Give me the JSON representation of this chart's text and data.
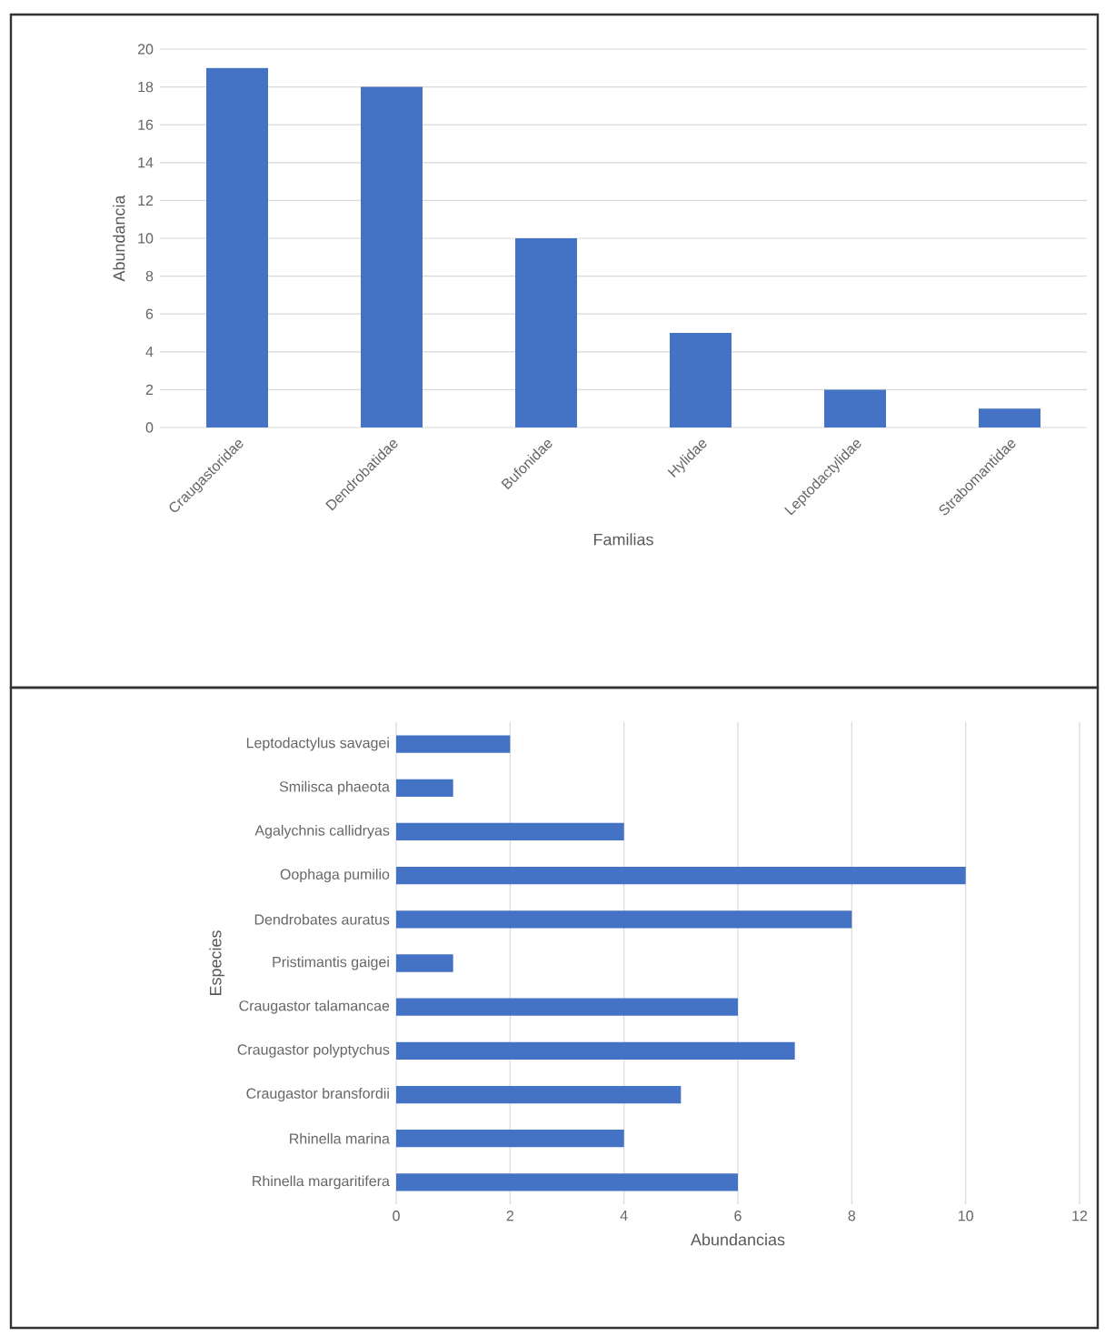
{
  "chart_data": [
    {
      "type": "bar",
      "xlabel": "Familias",
      "ylabel": "Abundancia",
      "categories": [
        "Craugastoridae",
        "Dendrobatidae",
        "Bufonidae",
        "Hylidae",
        "Leptodactylidae",
        "Strabomantidae"
      ],
      "values": [
        19,
        18,
        10,
        5,
        2,
        1
      ],
      "color": "#4472c4",
      "ylim": [
        0,
        20
      ],
      "yticks": [
        0,
        2,
        4,
        6,
        8,
        10,
        12,
        14,
        16,
        18,
        20
      ],
      "grid": "y"
    },
    {
      "type": "bar",
      "orientation": "horizontal",
      "xlabel": "Abundancias",
      "ylabel": "Especies",
      "categories": [
        "Leptodactylus savagei",
        "Smilisca phaeota",
        "Agalychnis callidryas",
        "Oophaga pumilio",
        "Dendrobates auratus",
        "Pristimantis gaigei",
        "Craugastor talamancae",
        "Craugastor polyptychus",
        "Craugastor bransfordii",
        "Rhinella marina",
        "Rhinella margaritifera"
      ],
      "values": [
        2,
        1,
        4,
        10,
        8,
        1,
        6,
        7,
        5,
        4,
        6
      ],
      "color": "#4472c4",
      "xlim": [
        0,
        12
      ],
      "xticks": [
        0,
        2,
        4,
        6,
        8,
        10,
        12
      ],
      "grid": "x"
    }
  ]
}
